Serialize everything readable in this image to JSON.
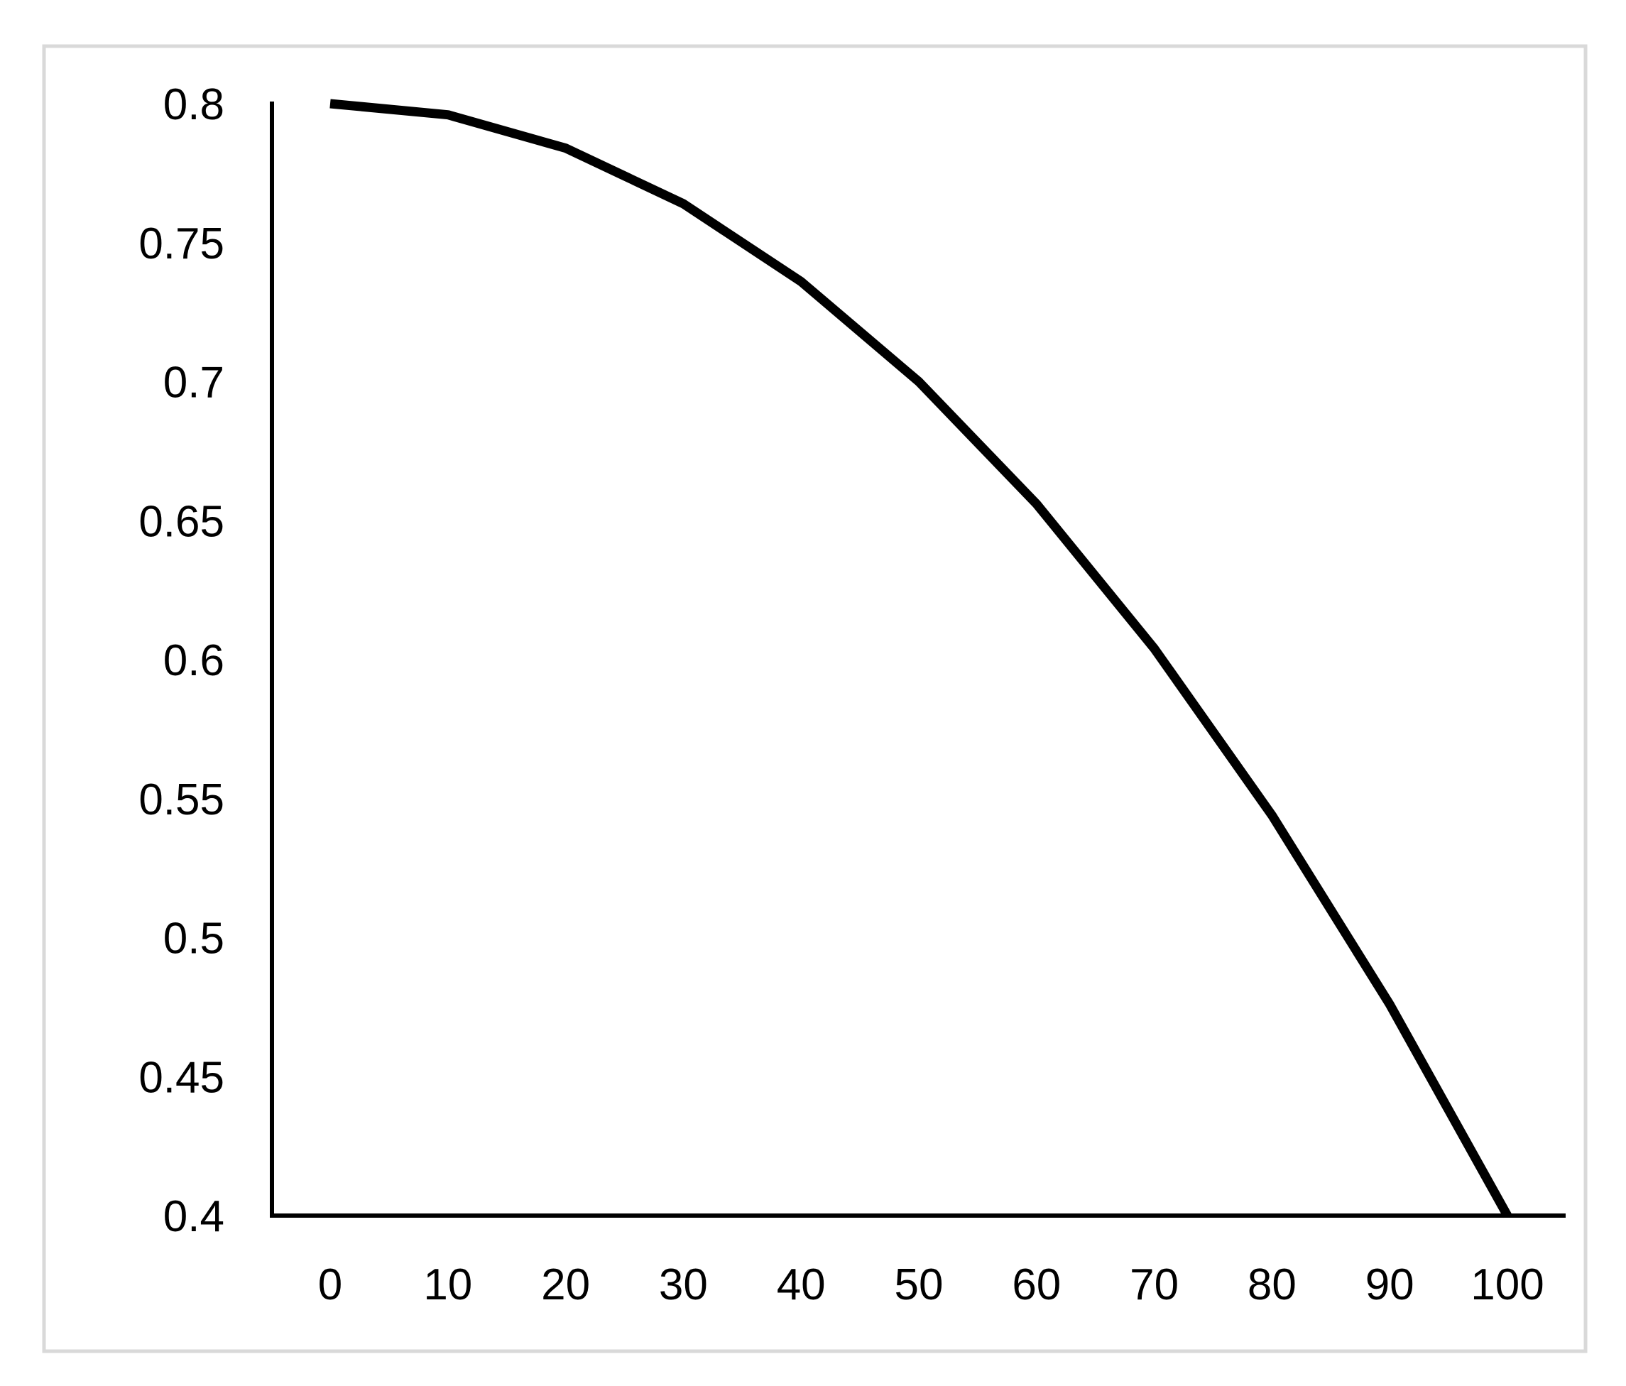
{
  "page": {
    "background_color": "#ffffff",
    "frame_color": "#d9d9d9",
    "title": ""
  },
  "chart_data": {
    "type": "line",
    "title": "",
    "xlabel": "",
    "ylabel": "",
    "grid": false,
    "legend_position": "none",
    "line_color": "#000000",
    "axis_color": "#000000",
    "tick_label_color": "#000000",
    "xlim": [
      0,
      100
    ],
    "ylim": [
      0.4,
      0.8
    ],
    "x": [
      0,
      10,
      20,
      30,
      40,
      50,
      60,
      70,
      80,
      90,
      100
    ],
    "series": [
      {
        "name": "",
        "values": [
          0.8,
          0.796,
          0.784,
          0.764,
          0.736,
          0.7,
          0.656,
          0.604,
          0.544,
          0.476,
          0.4
        ]
      }
    ],
    "x_ticks": [
      {
        "value": 0,
        "label": "0"
      },
      {
        "value": 10,
        "label": "10"
      },
      {
        "value": 20,
        "label": "20"
      },
      {
        "value": 30,
        "label": "30"
      },
      {
        "value": 40,
        "label": "40"
      },
      {
        "value": 50,
        "label": "50"
      },
      {
        "value": 60,
        "label": "60"
      },
      {
        "value": 70,
        "label": "70"
      },
      {
        "value": 80,
        "label": "80"
      },
      {
        "value": 90,
        "label": "90"
      },
      {
        "value": 100,
        "label": "100"
      }
    ],
    "y_ticks": [
      {
        "value": 0.4,
        "label": "0.4"
      },
      {
        "value": 0.45,
        "label": "0.45"
      },
      {
        "value": 0.5,
        "label": "0.5"
      },
      {
        "value": 0.55,
        "label": "0.55"
      },
      {
        "value": 0.6,
        "label": "0.6"
      },
      {
        "value": 0.65,
        "label": "0.65"
      },
      {
        "value": 0.7,
        "label": "0.7"
      },
      {
        "value": 0.75,
        "label": "0.75"
      },
      {
        "value": 0.8,
        "label": "0.8"
      }
    ]
  }
}
